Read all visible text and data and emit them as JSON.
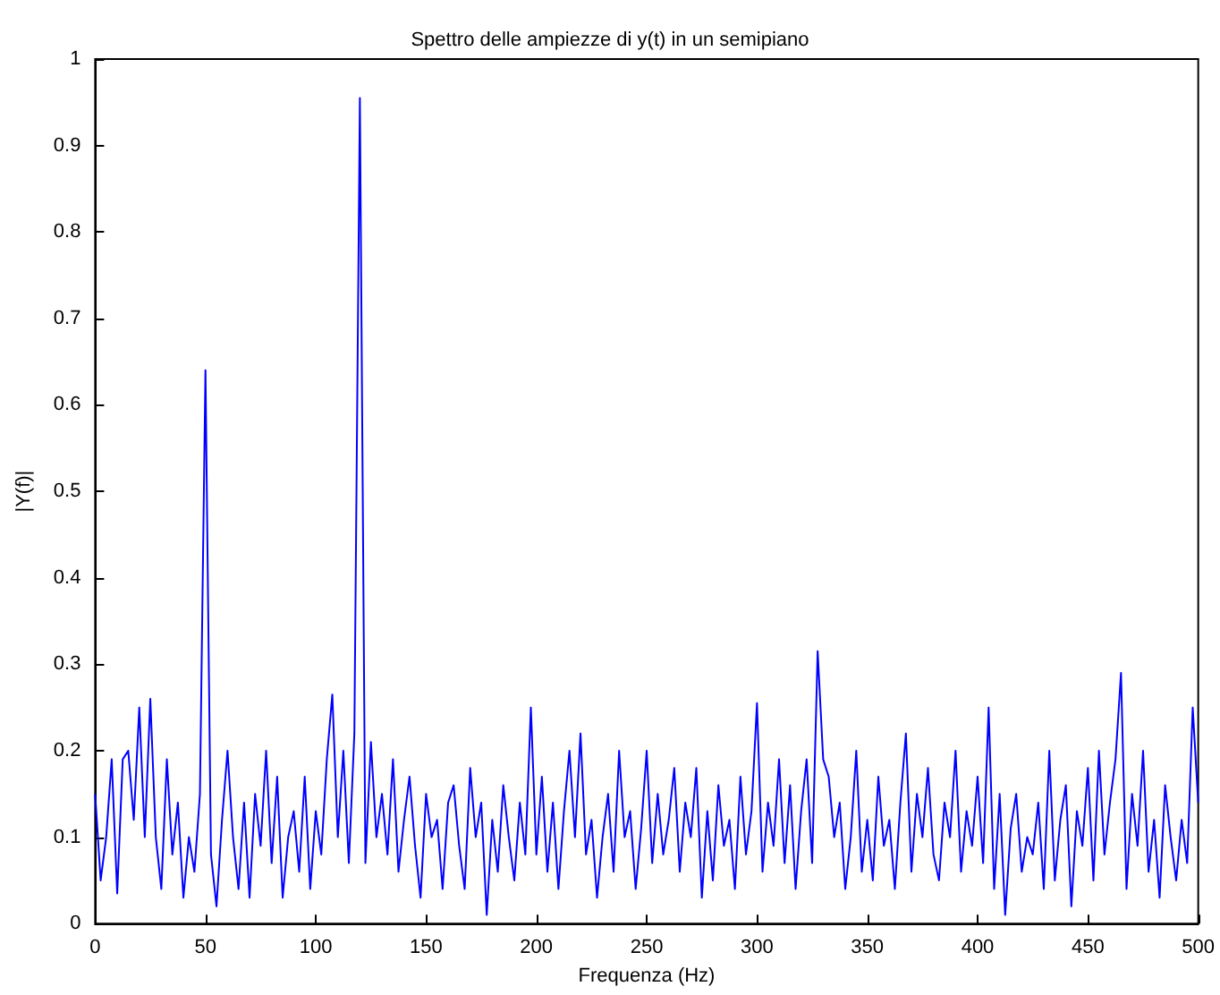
{
  "chart_data": {
    "type": "line",
    "title": "Spettro delle ampiezze di y(t) in un semipiano",
    "xlabel": "Frequenza (Hz)",
    "ylabel": "|Y(f)|",
    "x": [
      0,
      2.5,
      5,
      7.5,
      10,
      12.5,
      15,
      17.5,
      20,
      22.5,
      25,
      27.5,
      30,
      32.5,
      35,
      37.5,
      40,
      42.5,
      45,
      47.5,
      50,
      52.5,
      55,
      57.5,
      60,
      62.5,
      65,
      67.5,
      70,
      72.5,
      75,
      77.5,
      80,
      82.5,
      85,
      87.5,
      90,
      92.5,
      95,
      97.5,
      100,
      102.5,
      105,
      107.5,
      110,
      112.5,
      115,
      117.5,
      120,
      122.5,
      125,
      127.5,
      130,
      132.5,
      135,
      137.5,
      140,
      142.5,
      145,
      147.5,
      150,
      152.5,
      155,
      157.5,
      160,
      162.5,
      165,
      167.5,
      170,
      172.5,
      175,
      177.5,
      180,
      182.5,
      185,
      187.5,
      190,
      192.5,
      195,
      197.5,
      200,
      202.5,
      205,
      207.5,
      210,
      212.5,
      215,
      217.5,
      220,
      222.5,
      225,
      227.5,
      230,
      232.5,
      235,
      237.5,
      240,
      242.5,
      245,
      247.5,
      250,
      252.5,
      255,
      257.5,
      260,
      262.5,
      265,
      267.5,
      270,
      272.5,
      275,
      277.5,
      280,
      282.5,
      285,
      287.5,
      290,
      292.5,
      295,
      297.5,
      300,
      302.5,
      305,
      307.5,
      310,
      312.5,
      315,
      317.5,
      320,
      322.5,
      325,
      327.5,
      330,
      332.5,
      335,
      337.5,
      340,
      342.5,
      345,
      347.5,
      350,
      352.5,
      355,
      357.5,
      360,
      362.5,
      365,
      367.5,
      370,
      372.5,
      375,
      377.5,
      380,
      382.5,
      385,
      387.5,
      390,
      392.5,
      395,
      397.5,
      400,
      402.5,
      405,
      407.5,
      410,
      412.5,
      415,
      417.5,
      420,
      422.5,
      425,
      427.5,
      430,
      432.5,
      435,
      437.5,
      440,
      442.5,
      445,
      447.5,
      450,
      452.5,
      455,
      457.5,
      460,
      462.5,
      465,
      467.5,
      470,
      472.5,
      475,
      477.5,
      480,
      482.5,
      485,
      487.5,
      490,
      492.5,
      495,
      497.5,
      500
    ],
    "series": [
      {
        "color": "#0000ff",
        "values": [
          0.15,
          0.05,
          0.1,
          0.19,
          0.035,
          0.19,
          0.2,
          0.12,
          0.25,
          0.1,
          0.26,
          0.1,
          0.04,
          0.19,
          0.08,
          0.14,
          0.03,
          0.1,
          0.06,
          0.15,
          0.64,
          0.08,
          0.02,
          0.12,
          0.2,
          0.1,
          0.04,
          0.14,
          0.03,
          0.15,
          0.09,
          0.2,
          0.07,
          0.17,
          0.03,
          0.1,
          0.13,
          0.06,
          0.17,
          0.04,
          0.13,
          0.08,
          0.19,
          0.265,
          0.1,
          0.2,
          0.07,
          0.22,
          0.955,
          0.07,
          0.21,
          0.1,
          0.15,
          0.08,
          0.19,
          0.06,
          0.12,
          0.17,
          0.09,
          0.03,
          0.15,
          0.1,
          0.12,
          0.04,
          0.14,
          0.16,
          0.09,
          0.04,
          0.18,
          0.1,
          0.14,
          0.01,
          0.12,
          0.06,
          0.16,
          0.1,
          0.05,
          0.14,
          0.08,
          0.25,
          0.08,
          0.17,
          0.06,
          0.14,
          0.04,
          0.13,
          0.2,
          0.1,
          0.22,
          0.08,
          0.12,
          0.03,
          0.1,
          0.15,
          0.06,
          0.2,
          0.1,
          0.13,
          0.04,
          0.11,
          0.2,
          0.07,
          0.15,
          0.08,
          0.12,
          0.18,
          0.06,
          0.14,
          0.1,
          0.18,
          0.03,
          0.13,
          0.05,
          0.16,
          0.09,
          0.12,
          0.04,
          0.17,
          0.08,
          0.13,
          0.255,
          0.06,
          0.14,
          0.09,
          0.19,
          0.07,
          0.16,
          0.04,
          0.13,
          0.19,
          0.07,
          0.315,
          0.19,
          0.17,
          0.1,
          0.14,
          0.04,
          0.1,
          0.2,
          0.06,
          0.12,
          0.05,
          0.17,
          0.09,
          0.12,
          0.04,
          0.14,
          0.22,
          0.06,
          0.15,
          0.1,
          0.18,
          0.08,
          0.05,
          0.14,
          0.1,
          0.2,
          0.06,
          0.13,
          0.09,
          0.17,
          0.07,
          0.25,
          0.04,
          0.15,
          0.01,
          0.11,
          0.15,
          0.06,
          0.1,
          0.08,
          0.14,
          0.04,
          0.2,
          0.05,
          0.12,
          0.16,
          0.02,
          0.13,
          0.09,
          0.18,
          0.05,
          0.2,
          0.08,
          0.14,
          0.19,
          0.29,
          0.04,
          0.15,
          0.09,
          0.2,
          0.06,
          0.12,
          0.03,
          0.16,
          0.1,
          0.05,
          0.12,
          0.07,
          0.25,
          0.14
        ]
      }
    ],
    "xlim": [
      0,
      500
    ],
    "xticks": [
      0,
      50,
      100,
      150,
      200,
      250,
      300,
      350,
      400,
      450,
      500
    ],
    "ylim": [
      0,
      1
    ],
    "yticks": [
      0,
      0.1,
      0.2,
      0.3,
      0.4,
      0.5,
      0.6,
      0.7,
      0.8,
      0.9,
      1
    ],
    "grid": false,
    "marker": "none",
    "line_style": "solid"
  }
}
